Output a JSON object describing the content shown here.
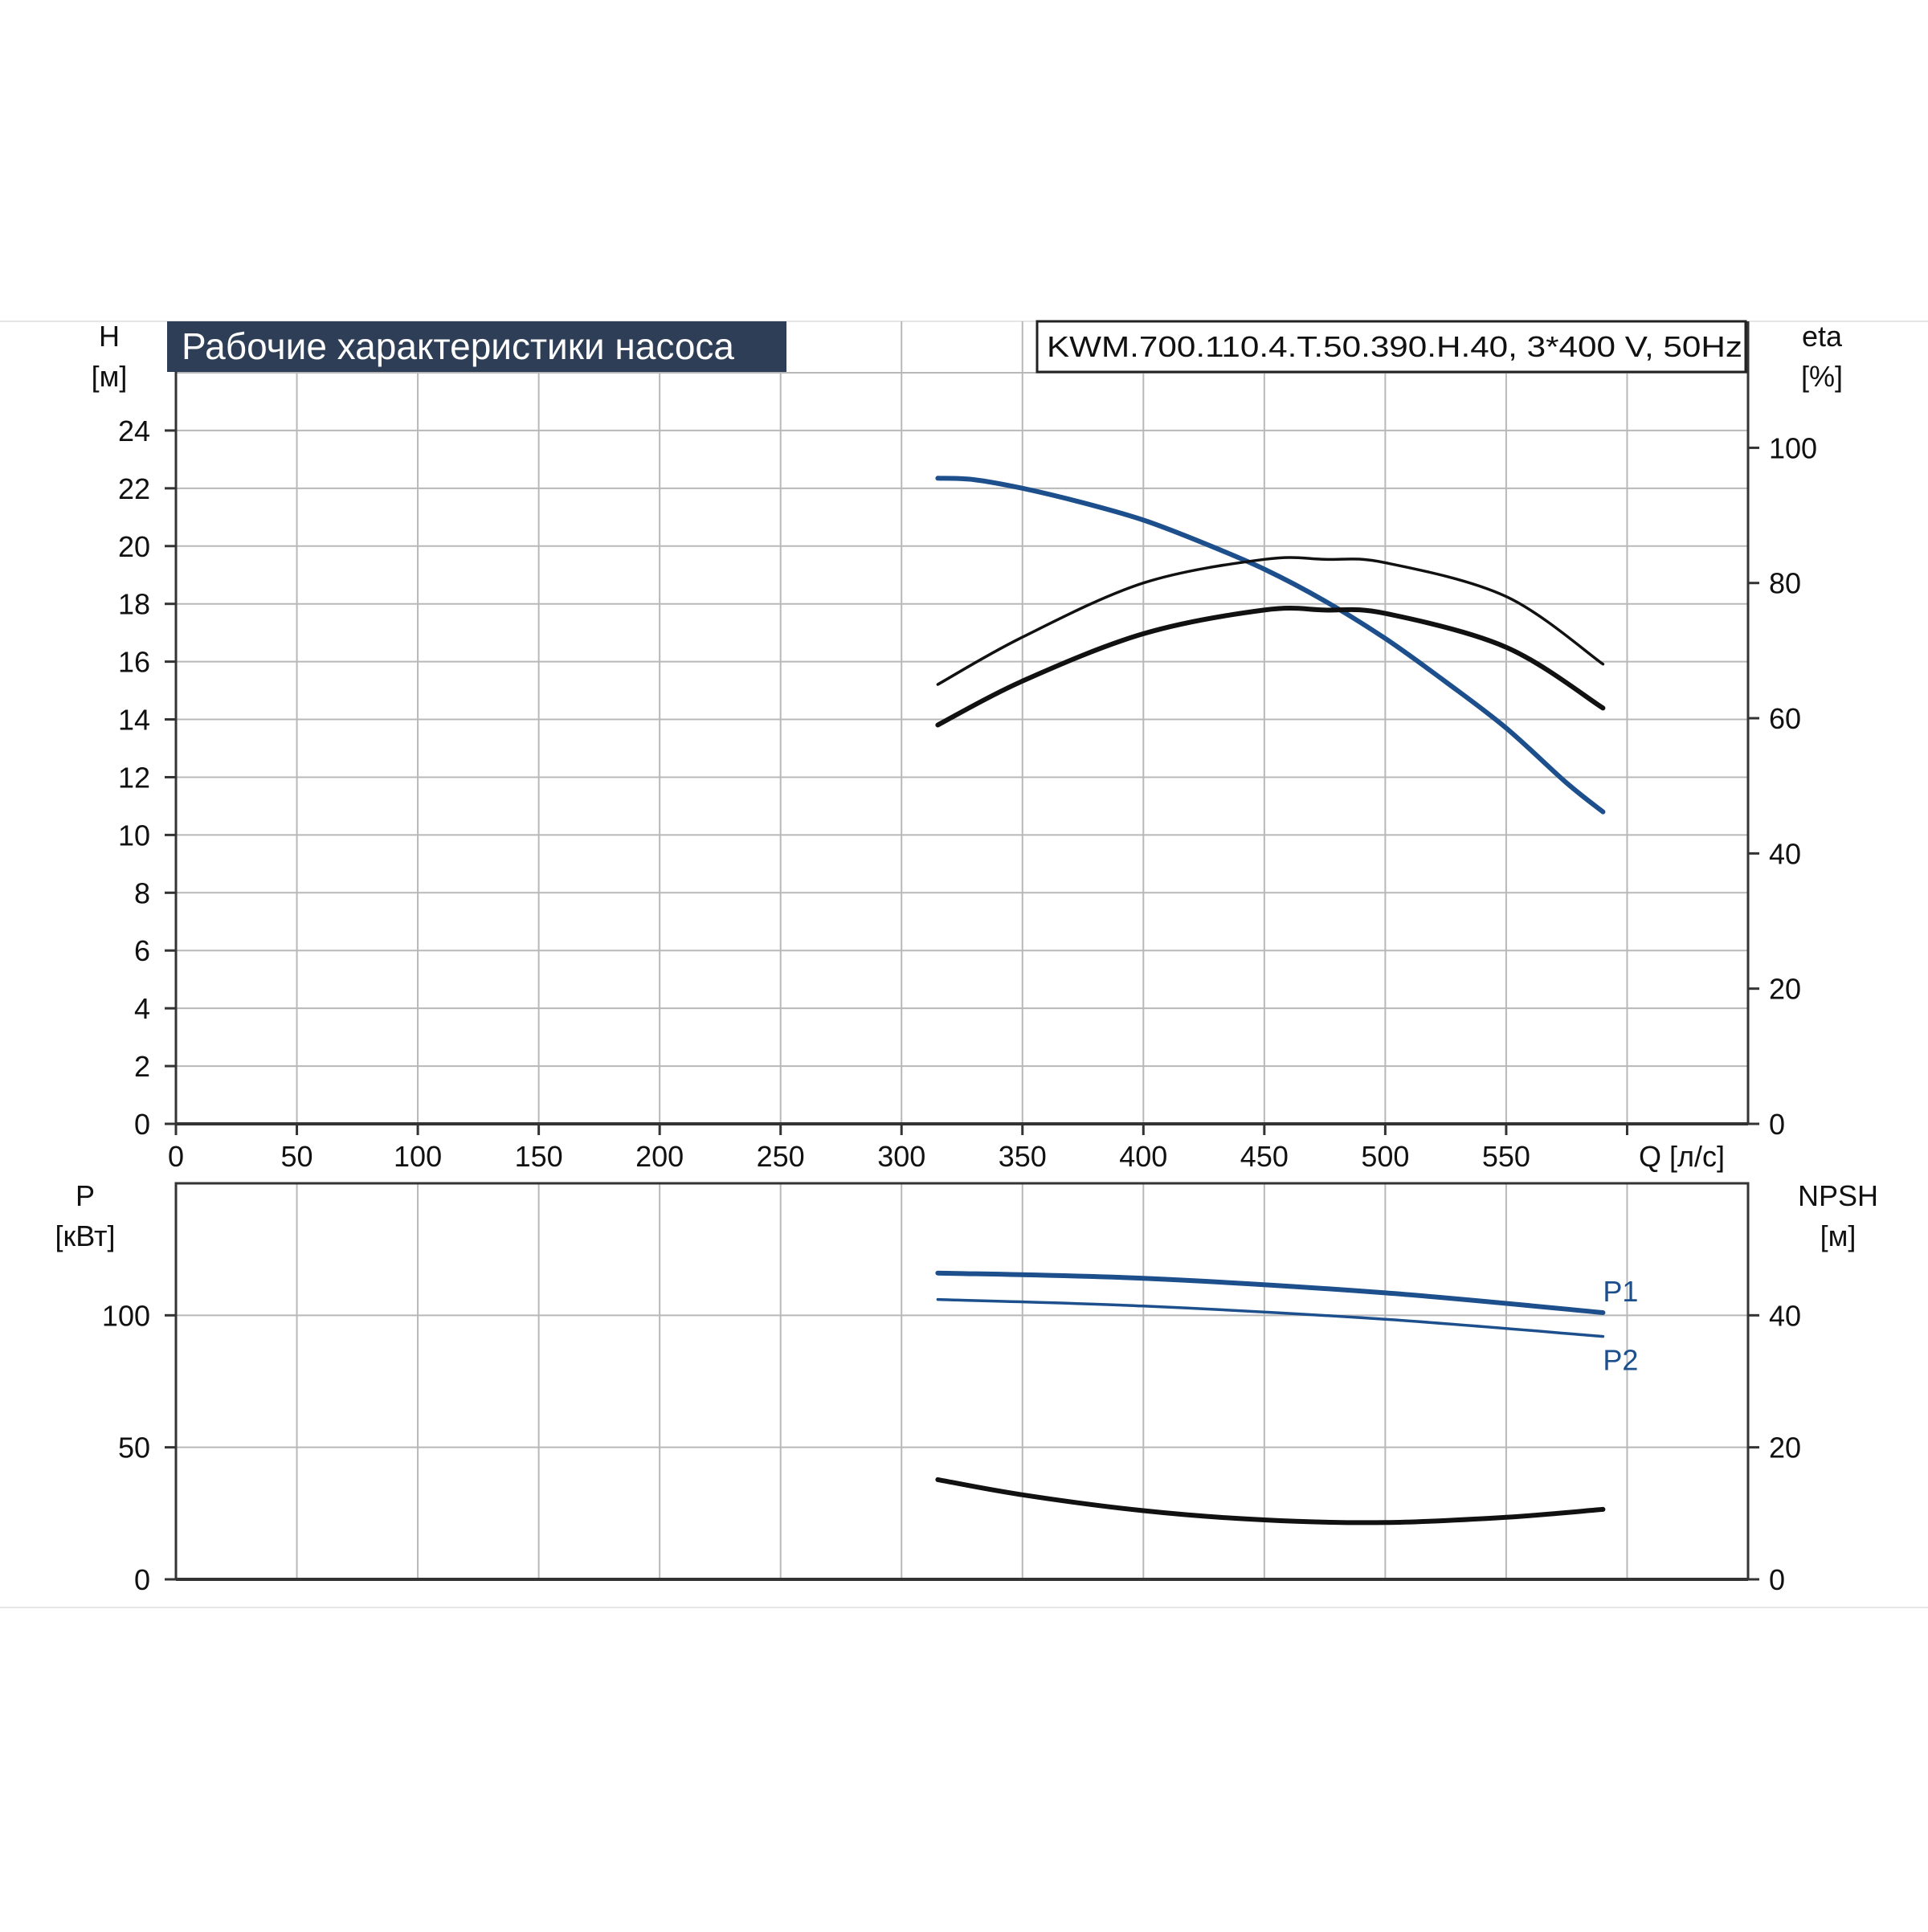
{
  "chart_data": [
    {
      "type": "line",
      "title": "Рабочие характеристики насоса",
      "model": "KWM.700.110.4.T.50.390.H.40, 3*400 V, 50Hz",
      "xlabel": "Q [л/с]",
      "ylabel": "H",
      "ylabel_unit": "[м]",
      "y2label": "eta",
      "y2label_unit": "[%]",
      "xlim": [
        0,
        650
      ],
      "xticks": [
        0,
        50,
        100,
        150,
        200,
        250,
        300,
        350,
        400,
        450,
        500,
        550
      ],
      "ylim": [
        0,
        26
      ],
      "yticks": [
        0,
        2,
        4,
        6,
        8,
        10,
        12,
        14,
        16,
        18,
        20,
        22,
        24
      ],
      "y2lim": [
        0,
        111.1
      ],
      "y2ticks": [
        0,
        20,
        40,
        60,
        80,
        100
      ],
      "grid": true,
      "series": [
        {
          "axis": "left",
          "color": "#1c4f8c",
          "width": "thick",
          "x": [
            315,
            330,
            350,
            375,
            400,
            425,
            450,
            475,
            500,
            525,
            550,
            575,
            590
          ],
          "y": [
            22.35,
            22.3,
            22.0,
            21.5,
            20.9,
            20.1,
            19.2,
            18.1,
            16.8,
            15.3,
            13.7,
            11.8,
            10.8
          ]
        },
        {
          "axis": "right",
          "color": "#111111",
          "width": "thin",
          "x": [
            315,
            350,
            400,
            450,
            475,
            500,
            550,
            590
          ],
          "y": [
            65.0,
            72.0,
            80.0,
            83.5,
            83.5,
            83.0,
            78.0,
            68.0
          ]
        },
        {
          "axis": "right",
          "color": "#111111",
          "width": "thick",
          "x": [
            315,
            350,
            400,
            450,
            475,
            500,
            550,
            590
          ],
          "y": [
            59.0,
            65.5,
            72.5,
            76.0,
            76.0,
            75.5,
            70.5,
            61.5
          ]
        }
      ]
    },
    {
      "type": "line",
      "ylabel": "P",
      "ylabel_unit": "[кВт]",
      "y2label": "NPSH",
      "y2label_unit": "[м]",
      "xlim": [
        0,
        650
      ],
      "ylim": [
        0,
        150
      ],
      "yticks": [
        0,
        50,
        100
      ],
      "y2lim": [
        0,
        60
      ],
      "y2ticks": [
        0,
        20,
        40
      ],
      "grid": true,
      "series": [
        {
          "name": "P1",
          "axis": "left",
          "color": "#1c4f8c",
          "width": "thick",
          "x": [
            315,
            400,
            500,
            590
          ],
          "y": [
            116.0,
            114.0,
            108.5,
            101.0
          ]
        },
        {
          "name": "P2",
          "axis": "left",
          "color": "#1c4f8c",
          "width": "thin",
          "x": [
            315,
            400,
            500,
            590
          ],
          "y": [
            106.0,
            103.5,
            98.5,
            92.0
          ]
        },
        {
          "axis": "right",
          "color": "#111111",
          "width": "thick",
          "x": [
            315,
            350,
            400,
            450,
            500,
            550,
            590
          ],
          "y": [
            15.1,
            12.8,
            10.4,
            9.0,
            8.6,
            9.4,
            10.6
          ]
        }
      ]
    }
  ]
}
